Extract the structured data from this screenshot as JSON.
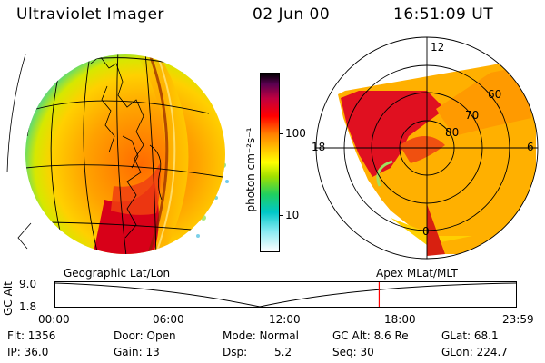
{
  "header": {
    "instrument": "Ultraviolet Imager",
    "date": "02 Jun 00",
    "time": "16:51:09 UT"
  },
  "colorbar": {
    "unit_label": "photon cm⁻²s⁻¹",
    "tick_100": "100",
    "tick_10": "10"
  },
  "polar_plot": {
    "mlt_top": "12",
    "mlt_left": "18",
    "mlt_right": "6",
    "mlt_bottom": "0",
    "lat_60": "60",
    "lat_70": "70",
    "lat_80": "80"
  },
  "labels": {
    "geographic": "Geographic Lat/Lon",
    "apex": "Apex MLat/MLT"
  },
  "altitude_plot": {
    "ylabel": "GC Alt",
    "ymax": "9.0",
    "ymin": "1.8",
    "marker_fraction": 0.703,
    "x_ticks": [
      "00:00",
      "06:00",
      "12:00",
      "18:00",
      "23:59"
    ]
  },
  "info": {
    "flt": "Flt: 1356",
    "ip": "IP: 36.0",
    "door": "Door: Open",
    "gain": "Gain: 13",
    "mode": "Mode: Normal",
    "dsp_label": "Dsp:",
    "dsp_value": "5.2",
    "gc_alt": "GC Alt: 8.6 Re",
    "seq": "Seq: 30",
    "glat": "GLat: 68.1",
    "glon": "GLon: 224.7"
  },
  "colors": {
    "accent_marker": "#ff0000",
    "bright": "#d80018",
    "mid": "#f09010",
    "dim": "#40c8a0"
  }
}
